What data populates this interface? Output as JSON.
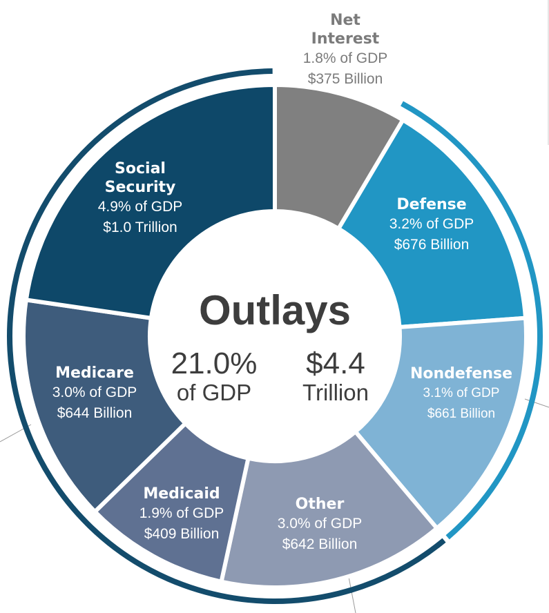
{
  "chart_data": {
    "type": "pie",
    "title": "Outlays",
    "center": {
      "pct": "21.0%",
      "pct_sub": "of GDP",
      "amount": "$4.4",
      "amount_sub": "Trillion"
    },
    "slices": [
      {
        "name": "Net Interest",
        "line1": "Net",
        "line2": "Interest",
        "gdp": "1.8% of GDP",
        "amount": "$375 Billion",
        "value": 375,
        "color": "#808080"
      },
      {
        "name": "Defense",
        "line1": "Defense",
        "line2": "",
        "gdp": "3.2% of GDP",
        "amount": "$676 Billion",
        "value": 676,
        "color": "#2196c4"
      },
      {
        "name": "Nondefense",
        "line1": "Nondefense",
        "line2": "",
        "gdp": "3.1% of GDP",
        "amount": "$661 Billion",
        "value": 661,
        "color": "#7fb3d5"
      },
      {
        "name": "Other",
        "line1": "Other",
        "line2": "",
        "gdp": "3.0% of GDP",
        "amount": "$642 Billion",
        "value": 642,
        "color": "#8e9ab2"
      },
      {
        "name": "Medicaid",
        "line1": "Medicaid",
        "line2": "",
        "gdp": "1.9% of GDP",
        "amount": "$409 Billion",
        "value": 409,
        "color": "#5f7192"
      },
      {
        "name": "Medicare",
        "line1": "Medicare",
        "line2": "",
        "gdp": "3.0% of GDP",
        "amount": "$644 Billion",
        "value": 644,
        "color": "#3e5c7c"
      },
      {
        "name": "Social Security",
        "line1": "Social",
        "line2": "Security",
        "gdp": "4.9% of GDP",
        "amount": "$1.0 Trillion",
        "value": 1000,
        "color": "#0e4869"
      }
    ],
    "ring_colors": {
      "discretionary": "#2196c4",
      "mandatory": "#134c6c"
    }
  }
}
